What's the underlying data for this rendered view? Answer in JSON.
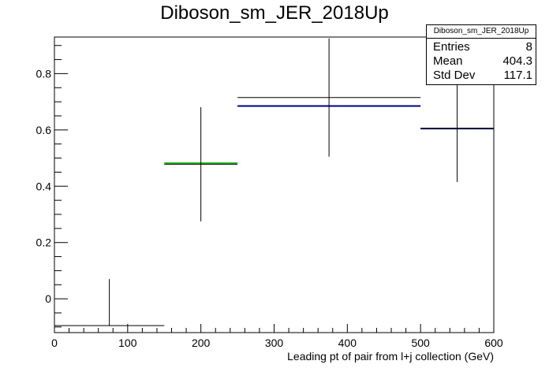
{
  "chart_data": {
    "type": "histogram",
    "title": "Diboson_sm_JER_2018Up",
    "xlabel": "Leading pt of pair from l+j collection (GeV)",
    "ylabel": "",
    "xlim": [
      0,
      600
    ],
    "ylim": [
      -0.12,
      0.93
    ],
    "x_ticks": [
      0,
      100,
      200,
      300,
      400,
      500,
      600
    ],
    "y_ticks": [
      0,
      0.2,
      0.4,
      0.6,
      0.8
    ],
    "x_tick_labels": [
      "0",
      "100",
      "200",
      "300",
      "400",
      "500",
      "600"
    ],
    "y_tick_labels": [
      "0",
      "0.2",
      "0.4",
      "0.6",
      "0.8"
    ],
    "grid": false,
    "bins": [
      {
        "xlow": 0,
        "xhigh": 150,
        "value": -0.095,
        "err_low": 0,
        "err_high": 0.165,
        "color": "#000000"
      },
      {
        "xlow": 150,
        "xhigh": 250,
        "value": 0.478,
        "err_low": 0.203,
        "err_high": 0.203,
        "color": "#000000"
      },
      {
        "xlow": 250,
        "xhigh": 500,
        "value": 0.715,
        "err_low": 0.21,
        "err_high": 0.21,
        "color": "#000000"
      },
      {
        "xlow": 500,
        "xhigh": 600,
        "value": 0.605,
        "err_low": 0.19,
        "err_high": 0.19,
        "color": "#000000"
      }
    ],
    "overlays": [
      {
        "xlow": 150,
        "xhigh": 250,
        "value": 0.482,
        "color": "#22bb22"
      },
      {
        "xlow": 250,
        "xhigh": 500,
        "value": 0.685,
        "color": "#000080"
      },
      {
        "xlow": 500,
        "xhigh": 600,
        "value": 0.605,
        "color": "#000080"
      }
    ],
    "stats": {
      "title": "Diboson_sm_JER_2018Up",
      "rows": [
        {
          "label": "Entries",
          "value": "8"
        },
        {
          "label": "Mean",
          "value": "404.3"
        },
        {
          "label": "Std Dev",
          "value": "117.1"
        }
      ]
    }
  }
}
